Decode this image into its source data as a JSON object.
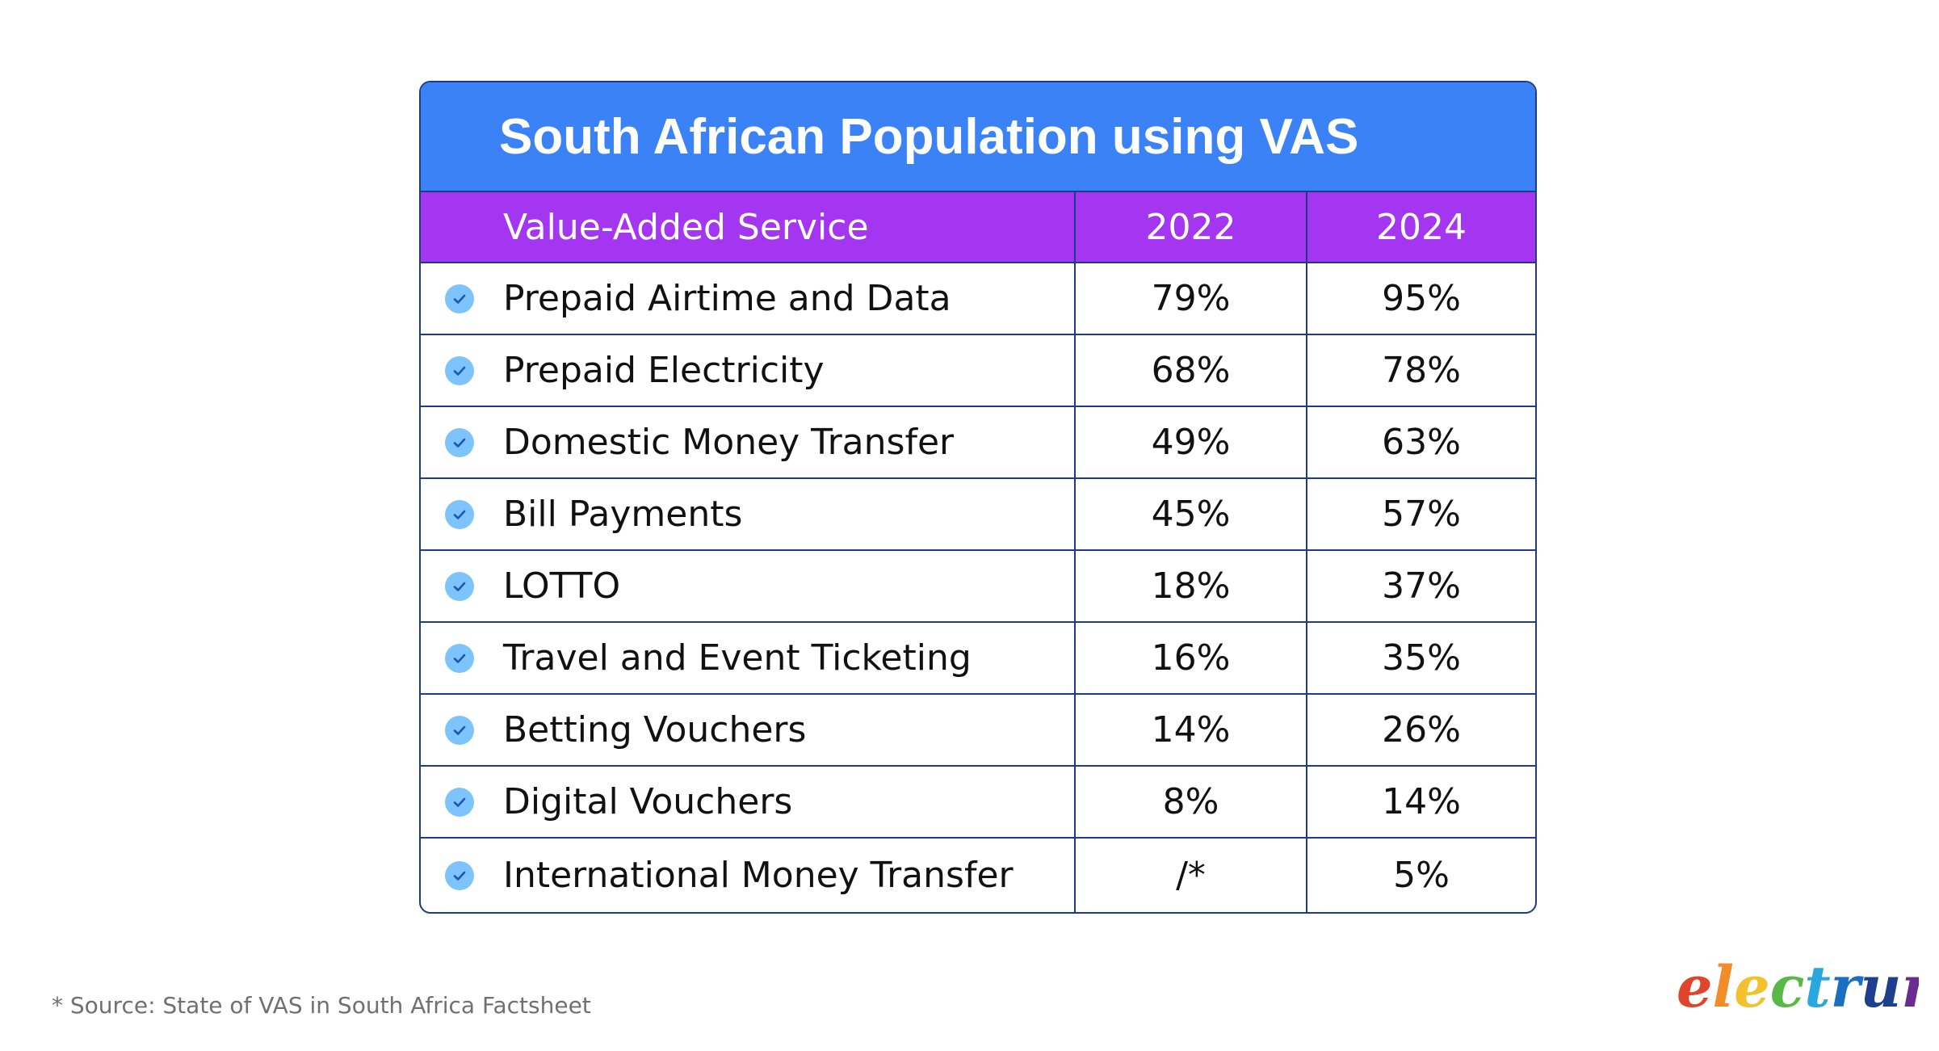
{
  "chart_data": {
    "type": "table",
    "title": "South African Population using VAS",
    "columns": [
      "Value-Added Service",
      "2022",
      "2024"
    ],
    "rows": [
      {
        "service": "Prepaid Airtime and Data",
        "y2022": "79%",
        "y2024": "95%"
      },
      {
        "service": "Prepaid Electricity",
        "y2022": "68%",
        "y2024": "78%"
      },
      {
        "service": "Domestic Money Transfer",
        "y2022": "49%",
        "y2024": "63%"
      },
      {
        "service": "Bill Payments",
        "y2022": "45%",
        "y2024": "57%"
      },
      {
        "service": "LOTTO",
        "y2022": "18%",
        "y2024": "37%"
      },
      {
        "service": "Travel and Event Ticketing",
        "y2022": "16%",
        "y2024": "35%"
      },
      {
        "service": "Betting Vouchers",
        "y2022": "14%",
        "y2024": "26%"
      },
      {
        "service": "Digital Vouchers",
        "y2022": "8%",
        "y2024": "14%"
      },
      {
        "service": "International Money Transfer",
        "y2022": "/*",
        "y2024": "5%"
      }
    ],
    "footnote": "* Source: State of VAS in South Africa Factsheet"
  },
  "logo": {
    "text": "electrum",
    "letter_colors": [
      "#e0442b",
      "#f28c28",
      "#f2c12e",
      "#58b947",
      "#2aa7df",
      "#1b6fc0",
      "#1e3f8f",
      "#6a2c91"
    ]
  },
  "icons": {
    "row_marker": "check-circle-icon"
  },
  "colors": {
    "title_bg": "#3b82f6",
    "header_bg": "#a435f0",
    "border": "#1f3a8a",
    "check": "#7cc4fb"
  }
}
